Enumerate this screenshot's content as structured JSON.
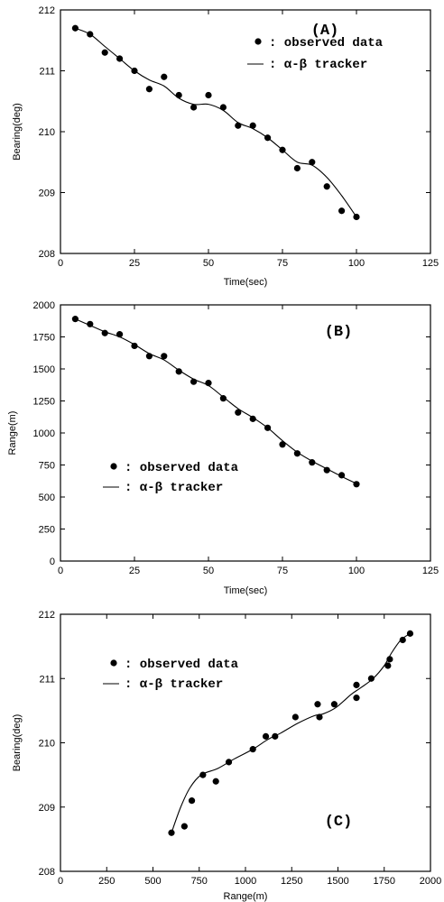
{
  "chart_data": [
    {
      "type": "line",
      "title": "(A)",
      "xlabel": "Time(sec)",
      "ylabel": "Bearing(deg)",
      "xlim": [
        0,
        125
      ],
      "ylim": [
        208,
        212
      ],
      "xticks": [
        "0",
        "25",
        "50",
        "75",
        "100",
        "125"
      ],
      "yticks": [
        "208",
        "209",
        "210",
        "211",
        "212"
      ],
      "legend": {
        "position": "top-right",
        "entries": [
          ": observed data",
          ": α-β tracker"
        ]
      },
      "grid": false,
      "series": [
        {
          "name": ": observed data",
          "kind": "scatter",
          "x": [
            5,
            10,
            15,
            20,
            25,
            30,
            35,
            40,
            45,
            50,
            55,
            60,
            65,
            70,
            75,
            80,
            85,
            90,
            95,
            100
          ],
          "y": [
            211.7,
            211.6,
            211.3,
            211.2,
            211.0,
            210.7,
            210.9,
            210.6,
            210.4,
            210.6,
            210.4,
            210.1,
            210.1,
            209.9,
            209.7,
            209.4,
            209.5,
            209.1,
            208.7,
            208.6
          ]
        },
        {
          "name": ": α-β tracker",
          "kind": "line",
          "x": [
            5,
            10,
            15,
            20,
            25,
            30,
            35,
            40,
            45,
            50,
            55,
            60,
            65,
            70,
            75,
            80,
            85,
            90,
            95,
            100
          ],
          "y": [
            211.7,
            211.6,
            211.4,
            211.2,
            211.0,
            210.85,
            210.75,
            210.55,
            210.45,
            210.45,
            210.35,
            210.15,
            210.05,
            209.9,
            209.7,
            209.5,
            209.45,
            209.25,
            208.95,
            208.6
          ]
        }
      ]
    },
    {
      "type": "line",
      "title": "(B)",
      "xlabel": "Time(sec)",
      "ylabel": "Range(m)",
      "xlim": [
        0,
        125
      ],
      "ylim": [
        0,
        2000
      ],
      "xticks": [
        "0",
        "25",
        "50",
        "75",
        "100",
        "125"
      ],
      "yticks": [
        "0",
        "250",
        "500",
        "750",
        "1000",
        "1250",
        "1500",
        "1750",
        "2000"
      ],
      "legend": {
        "position": "center-left",
        "entries": [
          ": observed data",
          ": α-β tracker"
        ]
      },
      "grid": false,
      "series": [
        {
          "name": ": observed data",
          "kind": "scatter",
          "x": [
            5,
            10,
            15,
            20,
            25,
            30,
            35,
            40,
            45,
            50,
            55,
            60,
            65,
            70,
            75,
            80,
            85,
            90,
            95,
            100
          ],
          "y": [
            1890,
            1850,
            1780,
            1770,
            1680,
            1600,
            1600,
            1480,
            1400,
            1390,
            1270,
            1160,
            1110,
            1040,
            910,
            840,
            770,
            710,
            670,
            600
          ]
        },
        {
          "name": ": α-β tracker",
          "kind": "line",
          "x": [
            5,
            10,
            15,
            20,
            25,
            30,
            35,
            40,
            45,
            50,
            55,
            60,
            65,
            70,
            75,
            80,
            85,
            90,
            95,
            100
          ],
          "y": [
            1890,
            1840,
            1790,
            1750,
            1690,
            1620,
            1570,
            1490,
            1420,
            1370,
            1280,
            1190,
            1120,
            1040,
            940,
            850,
            780,
            720,
            660,
            605
          ]
        }
      ]
    },
    {
      "type": "line",
      "title": "(C)",
      "xlabel": "Range(m)",
      "ylabel": "Bearing(deg)",
      "xlim": [
        0,
        2000
      ],
      "ylim": [
        208,
        212
      ],
      "xticks": [
        "0",
        "250",
        "500",
        "750",
        "1000",
        "1250",
        "1500",
        "1750",
        "2000"
      ],
      "yticks": [
        "208",
        "209",
        "210",
        "211",
        "212"
      ],
      "legend": {
        "position": "top-left",
        "entries": [
          ": observed data",
          ": α-β tracker"
        ]
      },
      "grid": false,
      "series": [
        {
          "name": ": observed data",
          "kind": "scatter",
          "x": [
            600,
            670,
            710,
            770,
            840,
            910,
            1040,
            1110,
            1160,
            1270,
            1390,
            1400,
            1480,
            1600,
            1600,
            1680,
            1770,
            1780,
            1850,
            1890
          ],
          "y": [
            208.6,
            208.7,
            209.1,
            209.5,
            209.4,
            209.7,
            209.9,
            210.1,
            210.1,
            210.4,
            210.6,
            210.4,
            210.6,
            210.9,
            210.7,
            211.0,
            211.2,
            211.3,
            211.6,
            211.7
          ]
        },
        {
          "name": ": α-β tracker",
          "kind": "line",
          "x": [
            600,
            650,
            700,
            760,
            850,
            940,
            1040,
            1120,
            1190,
            1280,
            1370,
            1420,
            1490,
            1570,
            1620,
            1690,
            1750,
            1790,
            1840,
            1890
          ],
          "y": [
            208.6,
            209.0,
            209.3,
            209.5,
            209.6,
            209.75,
            209.9,
            210.05,
            210.15,
            210.3,
            210.42,
            210.45,
            210.55,
            210.75,
            210.85,
            211.0,
            211.2,
            211.4,
            211.6,
            211.7
          ]
        }
      ]
    }
  ]
}
